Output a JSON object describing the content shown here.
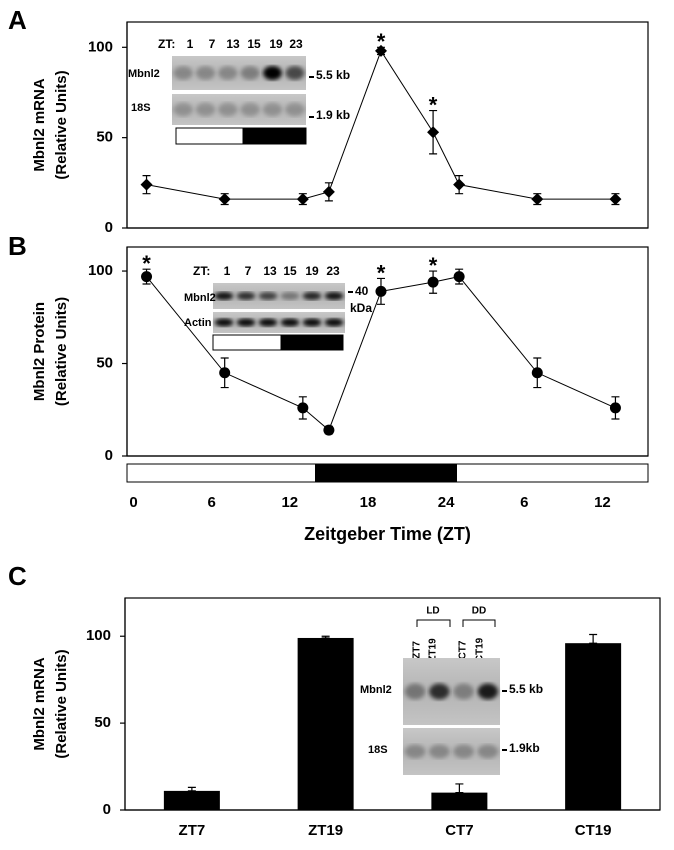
{
  "chart_data": [
    {
      "type": "line",
      "panel": "A",
      "ylabel": [
        "Mbnl2  mRNA",
        "(Relative Units)"
      ],
      "x": [
        1,
        7,
        13,
        15,
        19,
        23,
        25,
        31,
        37
      ],
      "values": [
        24,
        16,
        16,
        20,
        98,
        53,
        24,
        16,
        16
      ],
      "errors": [
        5,
        3,
        3,
        5,
        2,
        12,
        5,
        3,
        3
      ],
      "xlim": [
        -0.5,
        39.5
      ],
      "ylim": [
        0,
        114
      ],
      "yticks": [
        0,
        50,
        100
      ],
      "marker": "diamond",
      "color": "#000000",
      "annotations": [
        {
          "x": 19,
          "text": "*"
        },
        {
          "x": 23,
          "text": "*"
        }
      ],
      "inset": {
        "zt_label": "ZT:",
        "lanes": [
          "1",
          "7",
          "13",
          "15",
          "19",
          "23"
        ],
        "rows": [
          "Mbnl2",
          "18S"
        ],
        "sizes": [
          "5.5 kb",
          "1.9 kb"
        ]
      }
    },
    {
      "type": "line",
      "panel": "B",
      "ylabel": [
        "Mbnl2  Protein",
        "(Relative Units)"
      ],
      "x": [
        1,
        7,
        13,
        15,
        19,
        23,
        25,
        31,
        37
      ],
      "values": [
        97,
        45,
        26,
        14,
        89,
        94,
        97,
        45,
        26
      ],
      "errors": [
        4,
        8,
        6,
        2,
        7,
        6,
        4,
        8,
        6
      ],
      "xlim": [
        -0.5,
        39.5
      ],
      "ylim": [
        0,
        113
      ],
      "yticks": [
        0,
        50,
        100
      ],
      "xticks": [
        0,
        6,
        12,
        18,
        24,
        {
          "value": 30,
          "label": "6"
        },
        {
          "value": 36,
          "label": "12"
        }
      ],
      "xlabel": "Zeitgeber  Time  (ZT)",
      "marker": "circle",
      "color": "#000000",
      "annotations": [
        {
          "x": 1,
          "text": "*"
        },
        {
          "x": 19,
          "text": "*"
        },
        {
          "x": 23,
          "text": "*"
        }
      ],
      "inset": {
        "zt_label": "ZT:",
        "lanes": [
          "1",
          "7",
          "13",
          "15",
          "19",
          "23"
        ],
        "rows": [
          "Mbnl2",
          "Actin"
        ],
        "sizes": [
          "40",
          "kDa"
        ]
      }
    },
    {
      "type": "bar",
      "panel": "C",
      "ylabel": [
        "Mbnl2  mRNA",
        "(Relative Units)"
      ],
      "categories": [
        "ZT7",
        "ZT19",
        "CT7",
        "CT19"
      ],
      "values": [
        11,
        99,
        10,
        96
      ],
      "errors": [
        2,
        1,
        5,
        5
      ],
      "ylim": [
        0,
        122
      ],
      "yticks": [
        0,
        50,
        100
      ],
      "color": "#000000",
      "inset": {
        "groups": [
          "LD",
          "DD"
        ],
        "lanes": [
          "ZT7",
          "ZT19",
          "CT7",
          "CT19"
        ],
        "rows": [
          "Mbnl2",
          "18S"
        ],
        "sizes": [
          "5.5 kb",
          "1.9kb"
        ]
      }
    }
  ]
}
